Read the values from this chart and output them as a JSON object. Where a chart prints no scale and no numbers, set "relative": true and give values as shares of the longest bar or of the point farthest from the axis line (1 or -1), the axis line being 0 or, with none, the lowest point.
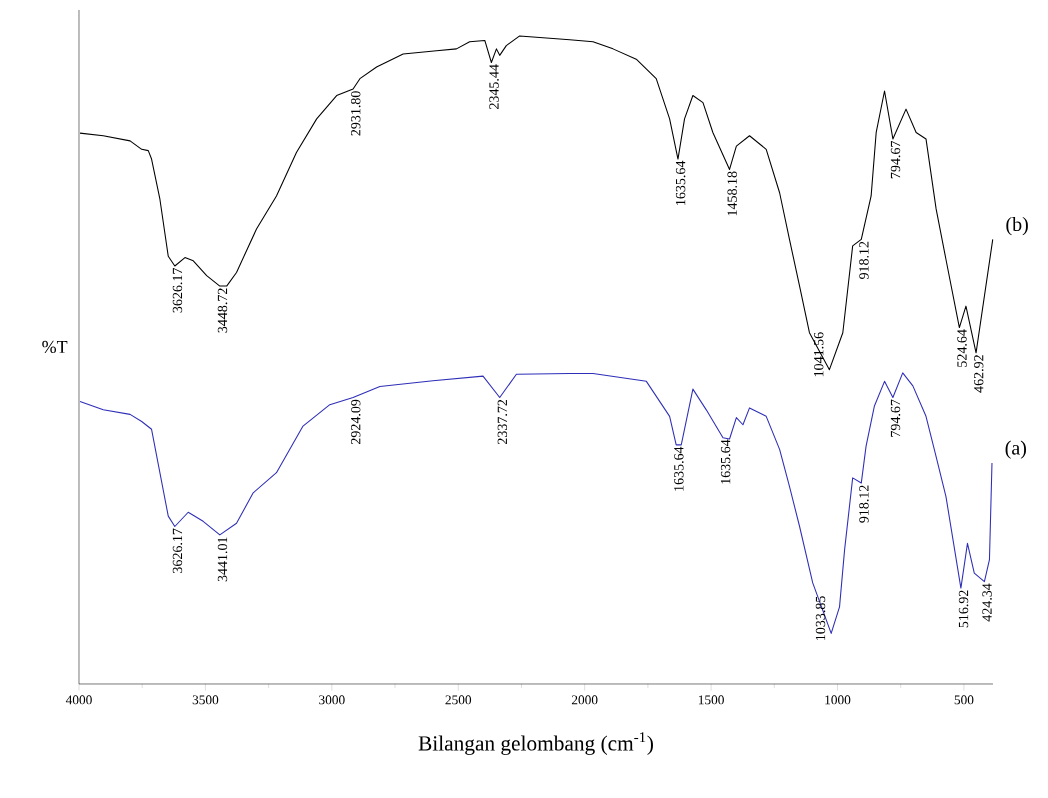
{
  "chart_data": {
    "type": "line",
    "relative": true,
    "xlabel": "Bilangan gelombang (cm$^{-1}$)",
    "ylabel": "%T",
    "xlim": [
      4000,
      385
    ],
    "xticks": [
      4000,
      {
        "value": 3750,
        "label": null
      },
      3500,
      {
        "value": 3250,
        "label": null
      },
      3000,
      {
        "value": 2750,
        "label": null
      },
      2500,
      {
        "value": 2250,
        "label": null
      },
      2000,
      {
        "value": 1750,
        "label": null
      },
      1500,
      {
        "value": 1250,
        "label": null
      },
      1000,
      {
        "value": 750,
        "label": null
      },
      500
    ],
    "series": [
      {
        "name": "(b)",
        "color": "#000000",
        "x": [
          3996,
          3904,
          3798,
          3752,
          3726,
          3713,
          3680,
          3647,
          3621,
          3581,
          3548,
          3495,
          3443,
          3416,
          3377,
          3298,
          3219,
          3140,
          3060,
          2981,
          2916,
          2889,
          2823,
          2718,
          2586,
          2507,
          2455,
          2395,
          2369,
          2349,
          2336,
          2310,
          2257,
          2059,
          1967,
          1888,
          1796,
          1717,
          1664,
          1631,
          1605,
          1572,
          1532,
          1493,
          1427,
          1400,
          1348,
          1282,
          1229,
          1190,
          1150,
          1111,
          1032,
          979,
          940,
          906,
          867,
          847,
          814,
          781,
          729,
          689,
          650,
          610,
          571,
          518,
          492,
          452,
          386
        ],
        "values": [
          0.85,
          0.846,
          0.838,
          0.825,
          0.823,
          0.81,
          0.748,
          0.66,
          0.645,
          0.658,
          0.653,
          0.63,
          0.614,
          0.614,
          0.635,
          0.702,
          0.753,
          0.82,
          0.872,
          0.908,
          0.918,
          0.934,
          0.952,
          0.972,
          0.977,
          0.98,
          0.991,
          0.993,
          0.959,
          0.98,
          0.97,
          0.985,
          1.0,
          0.994,
          0.991,
          0.98,
          0.964,
          0.934,
          0.872,
          0.81,
          0.872,
          0.908,
          0.897,
          0.851,
          0.794,
          0.83,
          0.846,
          0.825,
          0.758,
          0.686,
          0.614,
          0.542,
          0.485,
          0.542,
          0.676,
          0.686,
          0.753,
          0.851,
          0.915,
          0.841,
          0.887,
          0.851,
          0.841,
          0.733,
          0.655,
          0.55,
          0.583,
          0.511,
          0.686
        ]
      },
      {
        "name": "(a)",
        "color": "#2e2eb8",
        "x": [
          3996,
          3904,
          3798,
          3752,
          3713,
          3680,
          3647,
          3621,
          3568,
          3509,
          3443,
          3377,
          3311,
          3219,
          3114,
          3008,
          2916,
          2810,
          2600,
          2402,
          2336,
          2270,
          2059,
          1967,
          1756,
          1664,
          1638,
          1618,
          1572,
          1519,
          1453,
          1427,
          1400,
          1374,
          1348,
          1282,
          1229,
          1190,
          1150,
          1098,
          1025,
          992,
          972,
          940,
          906,
          887,
          854,
          814,
          781,
          742,
          702,
          650,
          610,
          571,
          512,
          486,
          459,
          419,
          399,
          389
        ],
        "values": [
          0.436,
          0.423,
          0.416,
          0.405,
          0.393,
          0.326,
          0.259,
          0.243,
          0.265,
          0.251,
          0.23,
          0.248,
          0.295,
          0.326,
          0.398,
          0.431,
          0.442,
          0.459,
          0.468,
          0.475,
          0.442,
          0.478,
          0.479,
          0.479,
          0.467,
          0.413,
          0.369,
          0.369,
          0.455,
          0.423,
          0.38,
          0.378,
          0.411,
          0.4,
          0.426,
          0.413,
          0.362,
          0.305,
          0.243,
          0.156,
          0.078,
          0.119,
          0.207,
          0.318,
          0.31,
          0.367,
          0.429,
          0.467,
          0.442,
          0.48,
          0.46,
          0.413,
          0.351,
          0.289,
          0.148,
          0.217,
          0.171,
          0.158,
          0.192,
          0.341
        ]
      }
    ],
    "annotations": [
      {
        "text": "3626.17",
        "x": 3621,
        "y": 0.645
      },
      {
        "text": "3448.72",
        "x": 3443,
        "y": 0.614
      },
      {
        "text": "2931.80",
        "x": 2916,
        "y": 0.918
      },
      {
        "text": "2345.44",
        "x": 2369,
        "y": 0.959
      },
      {
        "text": "1635.64",
        "x": 1631,
        "y": 0.81
      },
      {
        "text": "1458.18",
        "x": 1427,
        "y": 0.794
      },
      {
        "text": "1041.56",
        "x": 1032,
        "y": 0.485
      },
      {
        "text": "918.12",
        "x": 906,
        "y": 0.686
      },
      {
        "text": "794.67",
        "x": 781,
        "y": 0.841
      },
      {
        "text": "524.64",
        "x": 518,
        "y": 0.55
      },
      {
        "text": "462.92",
        "x": 452,
        "y": 0.511
      },
      {
        "text": "3626.17",
        "x": 3621,
        "y": 0.243
      },
      {
        "text": "3441.01",
        "x": 3443,
        "y": 0.23
      },
      {
        "text": "2924.09",
        "x": 2916,
        "y": 0.442
      },
      {
        "text": "2337.72",
        "x": 2336,
        "y": 0.442
      },
      {
        "text": "1635.64",
        "x": 1638,
        "y": 0.369
      },
      {
        "text": "1635.64",
        "x": 1453,
        "y": 0.38
      },
      {
        "text": "1033.85",
        "x": 1025,
        "y": 0.078
      },
      {
        "text": "918.12",
        "x": 906,
        "y": 0.31
      },
      {
        "text": "794.67",
        "x": 781,
        "y": 0.442
      },
      {
        "text": "516.92",
        "x": 512,
        "y": 0.148
      },
      {
        "text": "424.34",
        "x": 419,
        "y": 0.158
      }
    ]
  }
}
